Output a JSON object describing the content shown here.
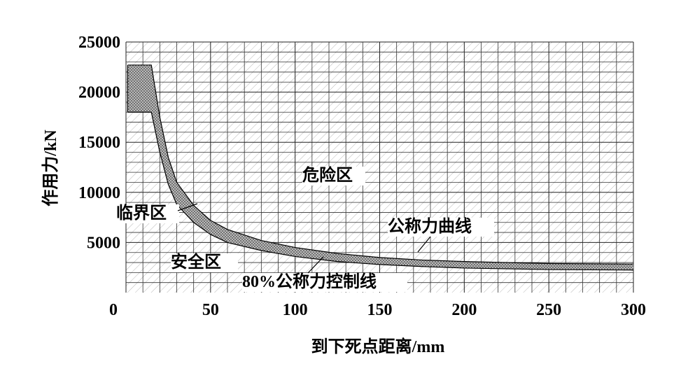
{
  "chart_data": {
    "type": "line",
    "x_label": "到下死点距离/mm",
    "y_label": "作用力/kN",
    "x": [
      1,
      15,
      20,
      25,
      30,
      40,
      50,
      60,
      80,
      100,
      125,
      150,
      175,
      200,
      250,
      300
    ],
    "series": [
      {
        "name": "公称力曲线",
        "color": "#000000",
        "values": [
          22700,
          22700,
          17500,
          13500,
          11000,
          8700,
          7200,
          6300,
          5200,
          4500,
          3900,
          3500,
          3250,
          3100,
          2900,
          2850
        ]
      },
      {
        "name": "80%公称力控制线",
        "color": "#000000",
        "values": [
          18000,
          18000,
          14000,
          10800,
          8800,
          7000,
          5800,
          5000,
          4200,
          3600,
          3100,
          2800,
          2600,
          2450,
          2300,
          2250
        ]
      }
    ],
    "annotations": [
      {
        "text": "危险区"
      },
      {
        "text": "临界区"
      },
      {
        "text": "安全区"
      }
    ],
    "xlim": [
      0,
      300
    ],
    "ylim": [
      0,
      25000
    ],
    "xticks": [
      0,
      50,
      100,
      150,
      200,
      250,
      300
    ],
    "yticks": [
      5000,
      10000,
      15000,
      20000,
      25000
    ],
    "x_minor_grid": [
      10,
      20,
      30,
      40,
      60,
      70,
      80,
      90,
      110,
      120,
      130,
      140,
      160,
      170,
      180,
      190,
      210,
      220,
      230,
      240,
      260,
      270,
      280,
      290
    ],
    "y_minor_grid": [
      1000,
      2000,
      3000,
      4000,
      6000,
      7000,
      8000,
      9000,
      11000,
      12000,
      13000,
      14000,
      16000,
      17000,
      18000,
      19000,
      21000,
      22000,
      23000,
      24000
    ],
    "grid": true
  }
}
